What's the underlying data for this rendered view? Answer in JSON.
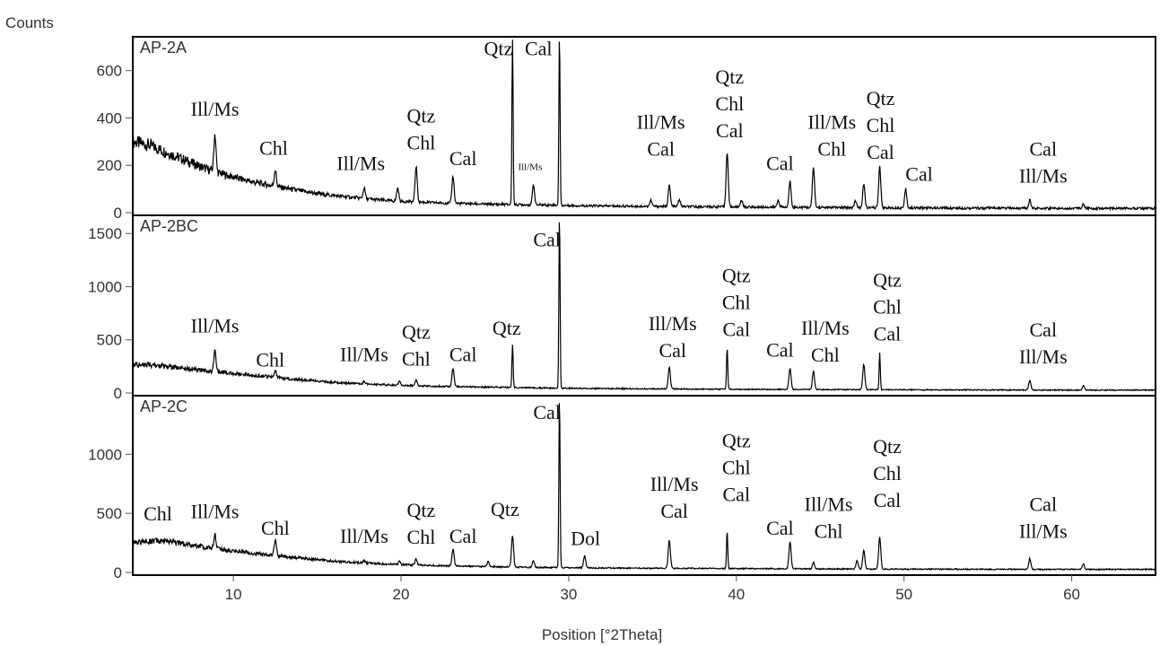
{
  "chart_data": {
    "type": "line",
    "ylabel": "Counts",
    "xlabel": "Position [°2Theta]",
    "xlim": [
      4,
      65
    ],
    "xticks": [
      10,
      20,
      30,
      40,
      50,
      60
    ],
    "grid": false,
    "panels": [
      {
        "name": "AP-2A",
        "ylim": [
          0,
          720
        ],
        "yticks": [
          0,
          200,
          400,
          600
        ],
        "baseline": [
          [
            4,
            300
          ],
          [
            5,
            285
          ],
          [
            6,
            255
          ],
          [
            7,
            225
          ],
          [
            8,
            195
          ],
          [
            9,
            170
          ],
          [
            10,
            150
          ],
          [
            11,
            132
          ],
          [
            12,
            118
          ],
          [
            13,
            105
          ],
          [
            14,
            92
          ],
          [
            15,
            80
          ],
          [
            16,
            72
          ],
          [
            17,
            65
          ],
          [
            18,
            58
          ],
          [
            19,
            52
          ],
          [
            20,
            48
          ],
          [
            21,
            45
          ],
          [
            22,
            42
          ],
          [
            23,
            40
          ],
          [
            24,
            38
          ],
          [
            25,
            36
          ],
          [
            26,
            35
          ],
          [
            27,
            34
          ],
          [
            28,
            33
          ],
          [
            29,
            32
          ],
          [
            30,
            30
          ],
          [
            32,
            28
          ],
          [
            34,
            27
          ],
          [
            36,
            26
          ],
          [
            38,
            25
          ],
          [
            40,
            24
          ],
          [
            45,
            22
          ],
          [
            50,
            20
          ],
          [
            55,
            19
          ],
          [
            60,
            18
          ],
          [
            65,
            18
          ]
        ],
        "peaks": [
          [
            8.9,
            160
          ],
          [
            12.5,
            70
          ],
          [
            17.8,
            45
          ],
          [
            19.8,
            55
          ],
          [
            20.9,
            150
          ],
          [
            23.1,
            115
          ],
          [
            26.65,
            700
          ],
          [
            27.9,
            85
          ],
          [
            29.45,
            720
          ],
          [
            34.9,
            25
          ],
          [
            36.0,
            90
          ],
          [
            36.6,
            30
          ],
          [
            39.45,
            230
          ],
          [
            40.3,
            30
          ],
          [
            42.5,
            30
          ],
          [
            43.2,
            110
          ],
          [
            44.6,
            170
          ],
          [
            47.1,
            30
          ],
          [
            47.6,
            100
          ],
          [
            48.55,
            175
          ],
          [
            50.1,
            80
          ],
          [
            57.5,
            35
          ],
          [
            60.7,
            20
          ]
        ],
        "labels": [
          {
            "text": [
              "Ill/Ms"
            ],
            "x": 8.9,
            "y": 410
          },
          {
            "text": [
              "Chl"
            ],
            "x": 12.4,
            "y": 245
          },
          {
            "text": [
              "Ill/Ms"
            ],
            "x": 17.6,
            "y": 180
          },
          {
            "text": [
              "Qtz",
              "Chl"
            ],
            "x": 21.2,
            "y": 380
          },
          {
            "text": [
              "Cal"
            ],
            "x": 23.7,
            "y": 200
          },
          {
            "text": [
              "Qtz"
            ],
            "x": 25.8,
            "y": 665
          },
          {
            "text": [
              "Cal"
            ],
            "x": 28.2,
            "y": 665
          },
          {
            "text": [
              "Ill/Ms"
            ],
            "x": 27.7,
            "y": 180,
            "small": true
          },
          {
            "text": [
              "Ill/Ms",
              "Cal"
            ],
            "x": 35.5,
            "y": 355
          },
          {
            "text": [
              "Qtz",
              "Chl",
              "Cal"
            ],
            "x": 39.6,
            "y": 545
          },
          {
            "text": [
              "Cal"
            ],
            "x": 42.6,
            "y": 180
          },
          {
            "text": [
              "Ill/Ms",
              "Chl"
            ],
            "x": 45.7,
            "y": 355
          },
          {
            "text": [
              "Qtz",
              "Chl",
              "Cal"
            ],
            "x": 48.6,
            "y": 455
          },
          {
            "text": [
              "Cal"
            ],
            "x": 50.9,
            "y": 135
          },
          {
            "text": [
              "Cal",
              "Ill/Ms"
            ],
            "x": 58.3,
            "y": 240
          }
        ]
      },
      {
        "name": "AP-2BC",
        "ylim": [
          0,
          1620
        ],
        "yticks": [
          0,
          500,
          1000,
          1500
        ],
        "baseline": [
          [
            4,
            270
          ],
          [
            5,
            262
          ],
          [
            6,
            248
          ],
          [
            7,
            232
          ],
          [
            8,
            215
          ],
          [
            9,
            200
          ],
          [
            10,
            185
          ],
          [
            11,
            170
          ],
          [
            12,
            155
          ],
          [
            13,
            140
          ],
          [
            14,
            125
          ],
          [
            15,
            112
          ],
          [
            16,
            100
          ],
          [
            17,
            92
          ],
          [
            18,
            85
          ],
          [
            19,
            78
          ],
          [
            20,
            72
          ],
          [
            22,
            64
          ],
          [
            24,
            58
          ],
          [
            26,
            53
          ],
          [
            28,
            48
          ],
          [
            30,
            45
          ],
          [
            32,
            42
          ],
          [
            34,
            40
          ],
          [
            36,
            38
          ],
          [
            38,
            36
          ],
          [
            40,
            35
          ],
          [
            45,
            32
          ],
          [
            50,
            30
          ],
          [
            55,
            28
          ],
          [
            60,
            27
          ],
          [
            65,
            27
          ]
        ],
        "peaks": [
          [
            8.9,
            190
          ],
          [
            12.5,
            60
          ],
          [
            17.8,
            25
          ],
          [
            19.9,
            35
          ],
          [
            20.9,
            55
          ],
          [
            23.1,
            175
          ],
          [
            26.65,
            410
          ],
          [
            29.45,
            1630
          ],
          [
            36.0,
            200
          ],
          [
            39.45,
            390
          ],
          [
            43.2,
            200
          ],
          [
            44.6,
            170
          ],
          [
            47.6,
            240
          ],
          [
            48.55,
            350
          ],
          [
            57.5,
            90
          ],
          [
            60.7,
            40
          ]
        ],
        "labels": [
          {
            "text": [
              "Ill/Ms"
            ],
            "x": 8.9,
            "y": 570
          },
          {
            "text": [
              "Chl"
            ],
            "x": 12.2,
            "y": 250
          },
          {
            "text": [
              "Ill/Ms"
            ],
            "x": 17.8,
            "y": 300
          },
          {
            "text": [
              "Qtz",
              "Chl"
            ],
            "x": 20.9,
            "y": 510
          },
          {
            "text": [
              "Cal"
            ],
            "x": 23.7,
            "y": 300
          },
          {
            "text": [
              "Qtz"
            ],
            "x": 26.3,
            "y": 550
          },
          {
            "text": [
              "Cal"
            ],
            "x": 28.7,
            "y": 1380
          },
          {
            "text": [
              "Ill/Ms",
              "Cal"
            ],
            "x": 36.2,
            "y": 590
          },
          {
            "text": [
              "Qtz",
              "Chl",
              "Cal"
            ],
            "x": 40.0,
            "y": 1040
          },
          {
            "text": [
              "Cal"
            ],
            "x": 42.6,
            "y": 340
          },
          {
            "text": [
              "Ill/Ms",
              "Chl"
            ],
            "x": 45.3,
            "y": 550
          },
          {
            "text": [
              "Qtz",
              "Chl",
              "Cal"
            ],
            "x": 49.0,
            "y": 1000
          },
          {
            "text": [
              "Cal",
              "Ill/Ms"
            ],
            "x": 58.3,
            "y": 530
          }
        ]
      },
      {
        "name": "AP-2C",
        "ylim": [
          0,
          1450
        ],
        "yticks": [
          0,
          500,
          1000
        ],
        "baseline": [
          [
            4,
            250
          ],
          [
            5,
            262
          ],
          [
            6,
            270
          ],
          [
            7,
            245
          ],
          [
            8,
            220
          ],
          [
            9,
            200
          ],
          [
            10,
            182
          ],
          [
            11,
            165
          ],
          [
            12,
            150
          ],
          [
            13,
            136
          ],
          [
            14,
            122
          ],
          [
            15,
            108
          ],
          [
            16,
            96
          ],
          [
            17,
            86
          ],
          [
            18,
            78
          ],
          [
            19,
            72
          ],
          [
            20,
            66
          ],
          [
            22,
            58
          ],
          [
            24,
            52
          ],
          [
            26,
            47
          ],
          [
            28,
            43
          ],
          [
            30,
            40
          ],
          [
            32,
            38
          ],
          [
            34,
            36
          ],
          [
            36,
            35
          ],
          [
            38,
            34
          ],
          [
            40,
            33
          ],
          [
            45,
            30
          ],
          [
            50,
            28
          ],
          [
            55,
            27
          ],
          [
            60,
            26
          ],
          [
            65,
            26
          ]
        ],
        "peaks": [
          [
            8.9,
            120
          ],
          [
            12.5,
            130
          ],
          [
            17.8,
            20
          ],
          [
            19.9,
            25
          ],
          [
            20.9,
            50
          ],
          [
            23.1,
            140
          ],
          [
            25.2,
            45
          ],
          [
            26.65,
            260
          ],
          [
            27.9,
            55
          ],
          [
            29.45,
            1450
          ],
          [
            30.95,
            100
          ],
          [
            36.0,
            240
          ],
          [
            39.45,
            310
          ],
          [
            43.2,
            230
          ],
          [
            44.6,
            55
          ],
          [
            47.2,
            70
          ],
          [
            47.6,
            160
          ],
          [
            48.55,
            270
          ],
          [
            57.5,
            90
          ],
          [
            60.7,
            45
          ]
        ],
        "labels": [
          {
            "text": [
              "Chl"
            ],
            "x": 5.5,
            "y": 440
          },
          {
            "text": [
              "Ill/Ms"
            ],
            "x": 8.9,
            "y": 460
          },
          {
            "text": [
              "Chl"
            ],
            "x": 12.5,
            "y": 320
          },
          {
            "text": [
              "Ill/Ms"
            ],
            "x": 17.8,
            "y": 250
          },
          {
            "text": [
              "Qtz",
              "Chl"
            ],
            "x": 21.2,
            "y": 470
          },
          {
            "text": [
              "Cal"
            ],
            "x": 23.7,
            "y": 250
          },
          {
            "text": [
              "Qtz"
            ],
            "x": 26.2,
            "y": 480
          },
          {
            "text": [
              "Cal"
            ],
            "x": 28.7,
            "y": 1300
          },
          {
            "text": [
              "Dol"
            ],
            "x": 31.0,
            "y": 230
          },
          {
            "text": [
              "Ill/Ms",
              "Cal"
            ],
            "x": 36.3,
            "y": 690
          },
          {
            "text": [
              "Qtz",
              "Chl",
              "Cal"
            ],
            "x": 40.0,
            "y": 1060
          },
          {
            "text": [
              "Cal"
            ],
            "x": 42.6,
            "y": 320
          },
          {
            "text": [
              "Ill/Ms",
              "Chl"
            ],
            "x": 45.5,
            "y": 520
          },
          {
            "text": [
              "Qtz",
              "Chl",
              "Cal"
            ],
            "x": 49.0,
            "y": 1010
          },
          {
            "text": [
              "Cal",
              "Ill/Ms"
            ],
            "x": 58.3,
            "y": 520
          }
        ]
      }
    ]
  }
}
